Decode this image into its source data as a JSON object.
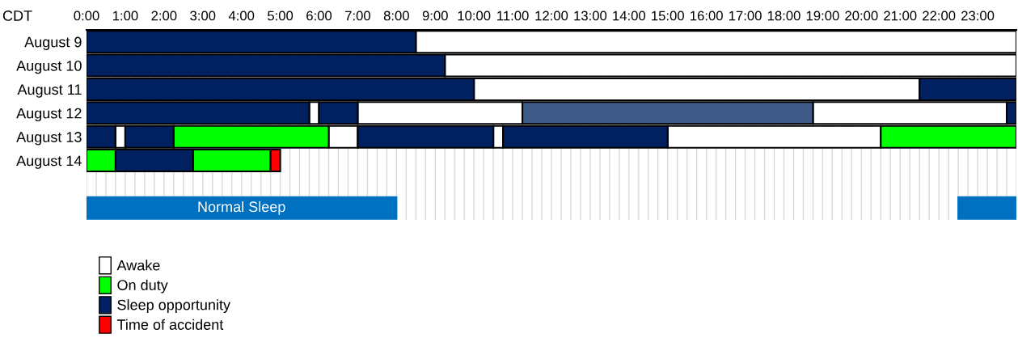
{
  "chart_data": {
    "type": "bar",
    "orientation": "horizontal",
    "ylabel": "CDT",
    "categories": [
      "August 9",
      "August 10",
      "August 11",
      "August 12",
      "August 13",
      "August 14",
      null,
      null
    ],
    "xlim": [
      0,
      24
    ],
    "xticks": [
      {
        "value": 0,
        "label": "0:00"
      },
      {
        "value": 1,
        "label": "1:00"
      },
      {
        "value": 2,
        "label": "2:00"
      },
      {
        "value": 3,
        "label": "3:00"
      },
      {
        "value": 4,
        "label": "4:00"
      },
      {
        "value": 5,
        "label": "5:00"
      },
      {
        "value": 6,
        "label": "6:00"
      },
      {
        "value": 7,
        "label": "7:00"
      },
      {
        "value": 8,
        "label": "8:00"
      },
      {
        "value": 9,
        "label": "9:00"
      },
      {
        "value": 10,
        "label": "10:00"
      },
      {
        "value": 11,
        "label": "11:00"
      },
      {
        "value": 12,
        "label": "12:00"
      },
      {
        "value": 13,
        "label": "13:00"
      },
      {
        "value": 14,
        "label": "14:00"
      },
      {
        "value": 15,
        "label": "15:00"
      },
      {
        "value": 16,
        "label": "16:00"
      },
      {
        "value": 17,
        "label": "17:00"
      },
      {
        "value": 18,
        "label": "18:00"
      },
      {
        "value": 19,
        "label": "19:00"
      },
      {
        "value": 20,
        "label": "20:00"
      },
      {
        "value": 21,
        "label": "21:00"
      },
      {
        "value": 22,
        "label": "22:00"
      },
      {
        "value": 23,
        "label": "23:00"
      }
    ],
    "legend": "bottom left",
    "grid": "x",
    "series": [
      {
        "name": "Awake",
        "color": "#ffffff",
        "base": [
          8.5,
          9.25,
          10,
          5.75,
          0.75,
          null,
          null,
          null
        ],
        "values": [
          15.5,
          14.75,
          11.5,
          0.25,
          0.25,
          null,
          null,
          null
        ]
      },
      {
        "color": "#ffffff",
        "base": [
          null,
          null,
          null,
          7,
          6.25,
          null,
          null,
          null
        ],
        "values": [
          null,
          null,
          null,
          4.25,
          0.75,
          null,
          null,
          null
        ]
      },
      {
        "color": "#ffffff",
        "base": [
          null,
          null,
          null,
          18.75,
          10.5,
          null,
          null,
          null
        ],
        "values": [
          null,
          null,
          null,
          5,
          0.25,
          null,
          null,
          null
        ]
      },
      {
        "color": "#ffffff",
        "base": [
          null,
          null,
          null,
          null,
          15,
          null,
          null,
          null
        ],
        "values": [
          null,
          null,
          null,
          null,
          5.5,
          null,
          null,
          null
        ]
      },
      {
        "name": "On duty",
        "color": "#00ff00",
        "base": [
          null,
          null,
          null,
          null,
          2.25,
          0,
          null,
          null
        ],
        "values": [
          null,
          null,
          null,
          null,
          4,
          0.75,
          null,
          null
        ]
      },
      {
        "color": "#00ff00",
        "base": [
          null,
          null,
          null,
          null,
          20.5,
          2.75,
          null,
          null
        ],
        "values": [
          null,
          null,
          null,
          null,
          3.5,
          2,
          null,
          null
        ]
      },
      {
        "name": "Sleep opportunity",
        "color": "#002060",
        "base": [
          0,
          0,
          0,
          0,
          0,
          0.75,
          null,
          null
        ],
        "values": [
          8.5,
          9.25,
          10,
          5.75,
          0.75,
          2,
          null,
          null
        ]
      },
      {
        "color": "#002060",
        "base": [
          null,
          null,
          21.5,
          6,
          1,
          null,
          null,
          null
        ],
        "values": [
          null,
          null,
          2.5,
          1,
          1.25,
          null,
          null,
          null
        ]
      },
      {
        "color": "#002060",
        "base": [
          null,
          null,
          null,
          23.75,
          7,
          null,
          null,
          null
        ],
        "values": [
          null,
          null,
          null,
          0.25,
          3.5,
          null,
          null,
          null
        ]
      },
      {
        "color": "#002060",
        "base": [
          null,
          null,
          null,
          null,
          10.75,
          null,
          null,
          null
        ],
        "values": [
          null,
          null,
          null,
          null,
          4.25,
          null,
          null,
          null
        ]
      },
      {
        "color": "#3e5a86",
        "base": [
          null,
          null,
          null,
          11.25,
          null,
          null,
          null,
          null
        ],
        "values": [
          null,
          null,
          null,
          7.5,
          null,
          null,
          null,
          null
        ]
      },
      {
        "name": "Time of accident",
        "color": "#ff0000",
        "base": [
          null,
          null,
          null,
          null,
          null,
          4.75,
          null,
          null
        ],
        "values": [
          null,
          null,
          null,
          null,
          null,
          0.25,
          null,
          null
        ]
      },
      {
        "name": "Normal Sleep",
        "color": "#0070c0",
        "base": [
          null,
          null,
          null,
          null,
          null,
          null,
          null,
          0
        ],
        "values": [
          null,
          null,
          null,
          null,
          null,
          null,
          null,
          8
        ]
      },
      {
        "color": "#0070c0",
        "base": [
          null,
          null,
          null,
          null,
          null,
          null,
          null,
          22.5
        ],
        "values": [
          null,
          null,
          null,
          null,
          null,
          null,
          null,
          1.5
        ]
      }
    ]
  }
}
